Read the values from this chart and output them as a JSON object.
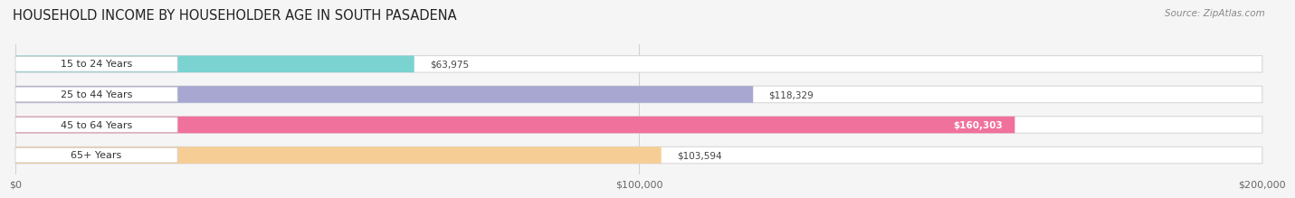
{
  "title": "HOUSEHOLD INCOME BY HOUSEHOLDER AGE IN SOUTH PASADENA",
  "source": "Source: ZipAtlas.com",
  "categories": [
    "15 to 24 Years",
    "25 to 44 Years",
    "45 to 64 Years",
    "65+ Years"
  ],
  "values": [
    63975,
    118329,
    160303,
    103594
  ],
  "bar_colors": [
    "#6dcfcc",
    "#9e9ece",
    "#f06292",
    "#f5c98a"
  ],
  "value_labels": [
    "$63,975",
    "$118,329",
    "$160,303",
    "$103,594"
  ],
  "label_inside": [
    false,
    false,
    true,
    false
  ],
  "xlim": [
    0,
    200000
  ],
  "xticks": [
    0,
    100000,
    200000
  ],
  "xtick_labels": [
    "$0",
    "$100,000",
    "$200,000"
  ],
  "title_fontsize": 10.5,
  "source_fontsize": 7.5,
  "background_color": "#f5f5f5"
}
